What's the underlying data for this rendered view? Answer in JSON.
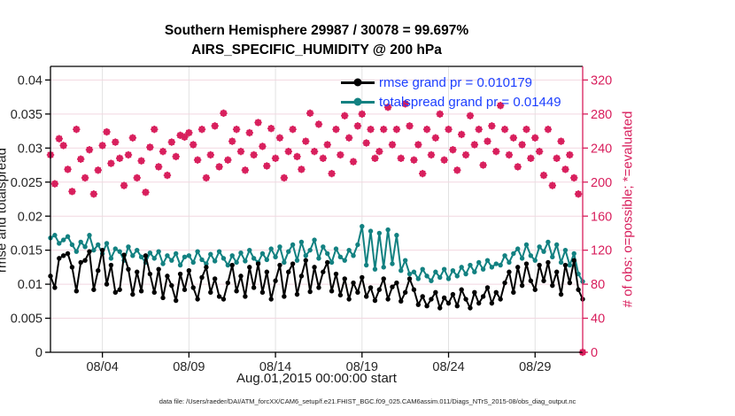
{
  "title": {
    "line1": "Southern Hemisphere 29987 / 30078 = 99.697%",
    "line2": "AIRS_SPECIFIC_HUMIDITY @ 200 hPa"
  },
  "caption": "data file: /Users/raeder/DAI/ATM_forcXX/CAM6_setup/f.e21.FHIST_BGC.f09_025.CAM6assim.011/Diags_NTrS_2015-08/obs_diag_output.nc",
  "colors": {
    "legend_text": "#1C3FFF",
    "axis_text": "#262626",
    "grid_horizontal": "#F2D7E0",
    "grid_vertical": "#E2E2E2",
    "background": "#FFFFFF"
  },
  "chart_data": {
    "type": "line",
    "title": "Southern Hemisphere 29987 / 30078 = 99.697% — AIRS_SPECIFIC_HUMIDITY @ 200 hPa",
    "x_label": "Aug.01,2015 00:00:00 start",
    "x_ticks": [
      "08/04",
      "08/09",
      "08/14",
      "08/19",
      "08/24",
      "08/29"
    ],
    "x_tick_day_offsets": [
      3,
      8,
      13,
      18,
      23,
      28
    ],
    "points_per_day": 4,
    "time_step_hours": 6,
    "left_axis": {
      "label": "rmse and totalspread",
      "ticks": [
        "0",
        "0.005",
        "0.01",
        "0.015",
        "0.02",
        "0.025",
        "0.03",
        "0.035",
        "0.04"
      ],
      "tick_values": [
        0,
        0.005,
        0.01,
        0.015,
        0.02,
        0.025,
        0.03,
        0.035,
        0.04
      ],
      "ylim": [
        0,
        0.042
      ]
    },
    "right_axis": {
      "label": "# of obs: o=possible; *=evaluated",
      "color": "#D81E5C",
      "ticks": [
        "0",
        "40",
        "80",
        "120",
        "160",
        "200",
        "240",
        "280",
        "320"
      ],
      "tick_values": [
        0,
        40,
        80,
        120,
        160,
        200,
        240,
        280,
        320
      ],
      "ylim": [
        0,
        336
      ]
    },
    "grid": true,
    "legend_position": "top-right-inside",
    "series": [
      {
        "name": "rmse",
        "legend": "rmse grand pr = 0.010179",
        "color": "#000000",
        "axis": "left",
        "marker": "filled-circle",
        "values": [
          0.0112,
          0.0095,
          0.0138,
          0.0142,
          0.0145,
          0.0125,
          0.009,
          0.0132,
          0.0135,
          0.0148,
          0.0092,
          0.012,
          0.015,
          0.01,
          0.0128,
          0.0088,
          0.0092,
          0.0143,
          0.0122,
          0.0085,
          0.0118,
          0.009,
          0.0142,
          0.0115,
          0.0088,
          0.0122,
          0.008,
          0.0112,
          0.0098,
          0.0076,
          0.0115,
          0.0092,
          0.012,
          0.0095,
          0.0078,
          0.011,
          0.0125,
          0.0088,
          0.0108,
          0.0082,
          0.0078,
          0.0102,
          0.0128,
          0.009,
          0.0112,
          0.0082,
          0.0125,
          0.0095,
          0.013,
          0.0088,
          0.0118,
          0.0078,
          0.0105,
          0.0128,
          0.0082,
          0.0118,
          0.013,
          0.0085,
          0.0112,
          0.0135,
          0.0089,
          0.0125,
          0.0095,
          0.0118,
          0.0132,
          0.009,
          0.0115,
          0.0084,
          0.0108,
          0.0078,
          0.0102,
          0.0088,
          0.011,
          0.0082,
          0.0095,
          0.0076,
          0.0092,
          0.0108,
          0.0078,
          0.0096,
          0.0102,
          0.0075,
          0.0088,
          0.0108,
          0.0092,
          0.007,
          0.0082,
          0.0068,
          0.0078,
          0.0088,
          0.0065,
          0.008,
          0.0072,
          0.0085,
          0.0068,
          0.0092,
          0.0078,
          0.0065,
          0.0088,
          0.0072,
          0.0082,
          0.0095,
          0.0072,
          0.0088,
          0.0078,
          0.0102,
          0.0118,
          0.0088,
          0.0125,
          0.0098,
          0.013,
          0.0105,
          0.0092,
          0.0128,
          0.0105,
          0.0132,
          0.0098,
          0.0118,
          0.0085,
          0.0128,
          0.0102,
          0.0135,
          0.0092,
          0.0078
        ]
      },
      {
        "name": "totalspread",
        "legend": "totalspread grand pr = 0.01449",
        "color": "#128181",
        "axis": "left",
        "marker": "filled-circle",
        "values": [
          0.0168,
          0.0172,
          0.016,
          0.0165,
          0.017,
          0.0158,
          0.0148,
          0.0162,
          0.0155,
          0.0172,
          0.015,
          0.0158,
          0.0145,
          0.016,
          0.0138,
          0.0152,
          0.0148,
          0.0135,
          0.0155,
          0.0142,
          0.015,
          0.014,
          0.0132,
          0.0146,
          0.0138,
          0.0148,
          0.013,
          0.0142,
          0.0135,
          0.0145,
          0.0128,
          0.014,
          0.0142,
          0.0132,
          0.0148,
          0.0136,
          0.013,
          0.0144,
          0.0134,
          0.0148,
          0.0138,
          0.0128,
          0.0142,
          0.0132,
          0.0146,
          0.0134,
          0.015,
          0.0138,
          0.0132,
          0.0145,
          0.0136,
          0.0152,
          0.014,
          0.0155,
          0.0132,
          0.0148,
          0.0158,
          0.0135,
          0.0162,
          0.0142,
          0.015,
          0.0165,
          0.0138,
          0.0155,
          0.0145,
          0.0132,
          0.0152,
          0.014,
          0.0135,
          0.015,
          0.0142,
          0.0158,
          0.0185,
          0.0128,
          0.0178,
          0.0122,
          0.0175,
          0.0125,
          0.018,
          0.013,
          0.0172,
          0.012,
          0.0135,
          0.0115,
          0.0118,
          0.0108,
          0.0122,
          0.0112,
          0.0105,
          0.0118,
          0.011,
          0.0122,
          0.0108,
          0.012,
          0.0112,
          0.0125,
          0.0115,
          0.0128,
          0.0118,
          0.0132,
          0.0122,
          0.0135,
          0.0125,
          0.013,
          0.0128,
          0.0142,
          0.0132,
          0.0145,
          0.0152,
          0.0138,
          0.0158,
          0.0142,
          0.0135,
          0.0155,
          0.0148,
          0.0162,
          0.014,
          0.0158,
          0.0132,
          0.015,
          0.0128,
          0.0145,
          0.0115,
          0.0104
        ]
      },
      {
        "name": "observations",
        "legend": null,
        "color": "#D81E5C",
        "axis": "right",
        "marker": "circle-plus-asterisk",
        "values": [
          232,
          198,
          251,
          243,
          215,
          189,
          262,
          227,
          205,
          238,
          186,
          214,
          243,
          259,
          222,
          247,
          228,
          196,
          232,
          252,
          205,
          225,
          188,
          241,
          262,
          218,
          236,
          208,
          247,
          230,
          255,
          253,
          258,
          244,
          226,
          262,
          205,
          232,
          266,
          218,
          281,
          226,
          248,
          262,
          236,
          214,
          258,
          232,
          270,
          242,
          219,
          263,
          228,
          252,
          205,
          236,
          262,
          230,
          215,
          248,
          281,
          236,
          268,
          228,
          244,
          210,
          262,
          232,
          278,
          252,
          224,
          266,
          280,
          246,
          262,
          228,
          236,
          262,
          288,
          244,
          262,
          228,
          292,
          266,
          226,
          244,
          210,
          262,
          232,
          252,
          280,
          226,
          262,
          238,
          214,
          256,
          232,
          278,
          244,
          262,
          220,
          248,
          266,
          236,
          290,
          262,
          232,
          252,
          218,
          244,
          262,
          228,
          252,
          236,
          208,
          262,
          196,
          228,
          248,
          215,
          232,
          205,
          186,
          0
        ]
      }
    ]
  }
}
